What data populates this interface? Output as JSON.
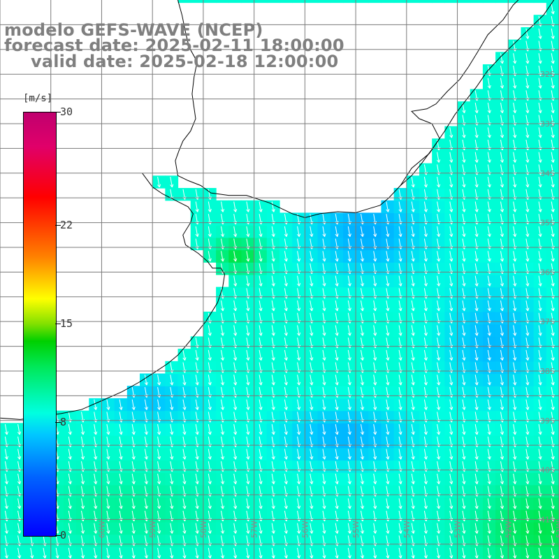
{
  "title": {
    "line1": "modelo GEFS-WAVE (NCEP)",
    "line2": "forecast date: 2025-02-11 18:00:00",
    "line3": "valid date: 2025-02-18 12:00:00"
  },
  "colorbar": {
    "units": "[m/s]",
    "ticks": [
      {
        "value": 30,
        "label": "30"
      },
      {
        "value": 22,
        "label": "22"
      },
      {
        "value": 15,
        "label": "15"
      },
      {
        "value": 8,
        "label": "8"
      },
      {
        "value": 0,
        "label": "0"
      }
    ],
    "min": 0,
    "max": 30
  },
  "map": {
    "lon_range": [
      -62,
      -51
    ],
    "lat_range": [
      -41.8,
      -30.5
    ],
    "lon_grid": [
      -62,
      -61,
      -60,
      -59,
      -58,
      -57,
      -56,
      -55,
      -54,
      -53,
      -52,
      -51
    ],
    "lat_grid": [
      -31,
      -31.5,
      -32,
      -32.5,
      -33,
      -33.5,
      -34,
      -34.5,
      -35,
      -35.5,
      -36,
      -36.5,
      -37,
      -37.5,
      -38,
      -38.5,
      -39,
      -39.5,
      -40,
      -40.5,
      -41,
      -41.5
    ],
    "lon_labels": [
      "61W",
      "60W",
      "59W",
      "58W",
      "57W",
      "56W",
      "55W",
      "54W",
      "53W",
      "52W",
      "51W"
    ],
    "lat_labels": [
      "32S",
      "33S",
      "34S",
      "35S",
      "36S",
      "37S",
      "38S",
      "39S",
      "40S",
      "41S"
    ],
    "wind_field": {
      "description_units": "m/s",
      "typical_speed_range": [
        6,
        13
      ],
      "dominant_direction": "from north-northwest toward south-southeast"
    },
    "colors": {
      "land": "#ffffff",
      "coast": "#000000",
      "grid": "#7a7a7a",
      "arrow": "#ffffff"
    }
  }
}
